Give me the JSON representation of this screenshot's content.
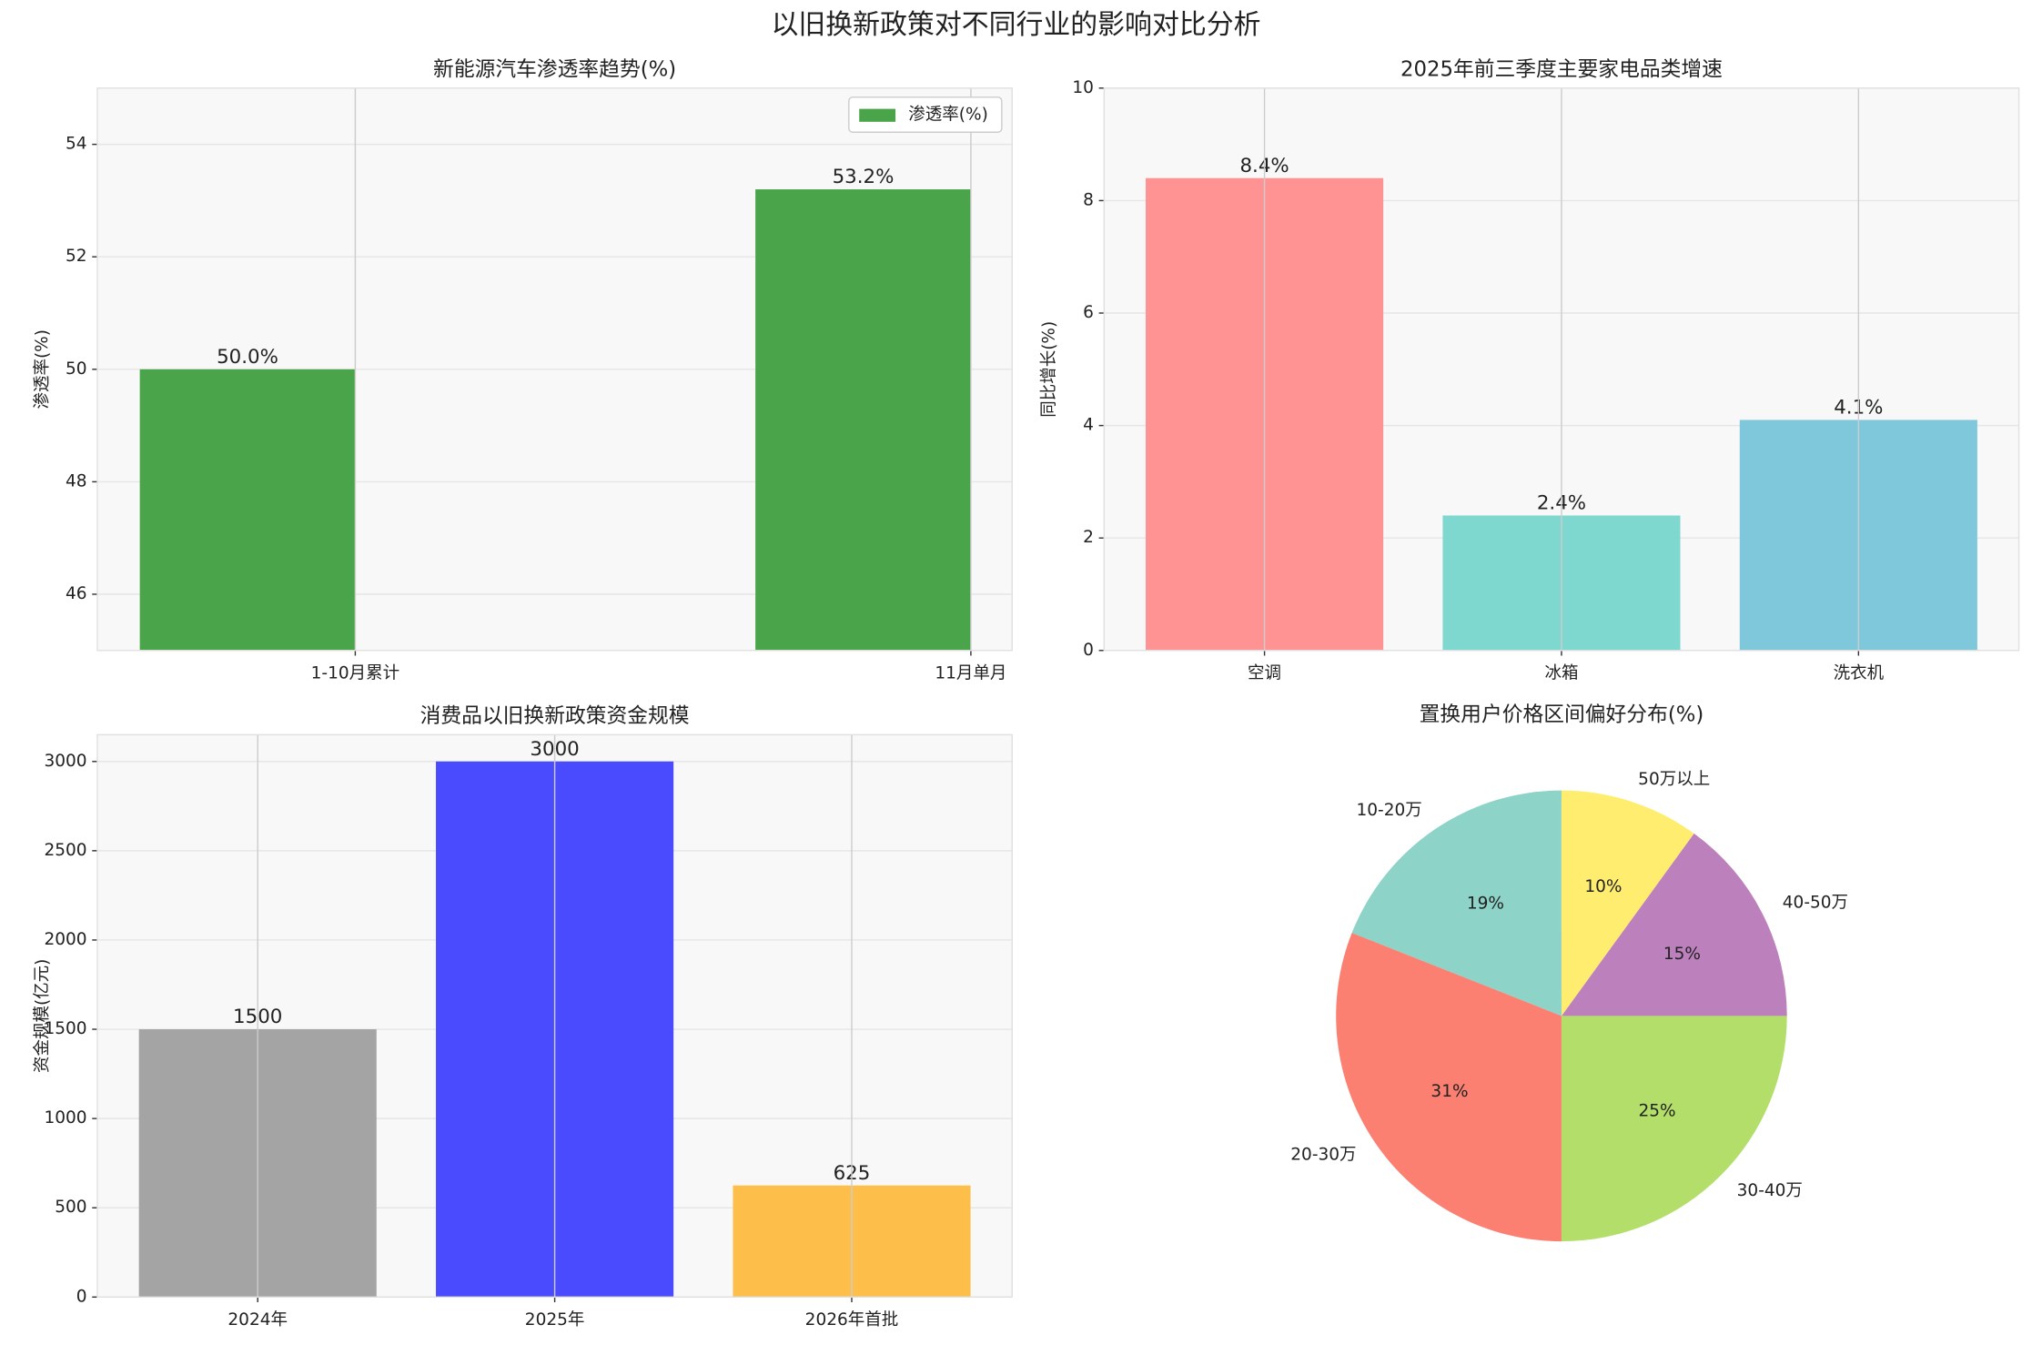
{
  "title": "以旧换新政策对不同行业的影响对比分析",
  "chart_data": [
    {
      "type": "bar",
      "title": "新能源汽车渗透率趋势(%)",
      "ylabel": "渗透率(%)",
      "categories": [
        "1-10月累计",
        "11月单月"
      ],
      "series": [
        {
          "name": "渗透率(%)",
          "color": "#4aa54a",
          "values": [
            50.0,
            53.2
          ],
          "value_labels": [
            "50.0%",
            "53.2%"
          ]
        }
      ],
      "ylim": [
        45,
        55
      ],
      "yticks": [
        46,
        48,
        50,
        52,
        54
      ],
      "grid": true,
      "legend": "upper right"
    },
    {
      "type": "bar",
      "title": "2025年前三季度主要家电品类增速",
      "ylabel": "同比增长(%)",
      "categories": [
        "空调",
        "冰箱",
        "洗衣机"
      ],
      "values": [
        8.4,
        2.4,
        4.1
      ],
      "value_labels": [
        "8.4%",
        "2.4%",
        "4.1%"
      ],
      "colors": [
        "#ff9393",
        "#7fd8d0",
        "#7fc8dc"
      ],
      "ylim": [
        0,
        10
      ],
      "yticks": [
        0,
        2,
        4,
        6,
        8,
        10
      ],
      "grid": true
    },
    {
      "type": "bar",
      "title": "消费品以旧换新政策资金规模",
      "ylabel": "资金规模(亿元)",
      "categories": [
        "2024年",
        "2025年",
        "2026年首批"
      ],
      "values": [
        1500,
        3000,
        625
      ],
      "colors": [
        "#a4a4a4",
        "#4a4aff",
        "#fdbe4a"
      ],
      "ylim": [
        0,
        3150
      ],
      "yticks": [
        0,
        500,
        1000,
        1500,
        2000,
        2500,
        3000
      ],
      "grid": true
    },
    {
      "type": "pie",
      "title": "置换用户价格区间偏好分布(%)",
      "categories": [
        "10-20万",
        "20-30万",
        "30-40万",
        "40-50万",
        "50万以上"
      ],
      "values": [
        19,
        31,
        25,
        15,
        10
      ],
      "value_labels": [
        "19%",
        "31%",
        "25%",
        "15%",
        "10%"
      ],
      "colors": [
        "#8dd3c7",
        "#fb8072",
        "#b3de69",
        "#bc80bd",
        "#ffed6f"
      ]
    }
  ]
}
